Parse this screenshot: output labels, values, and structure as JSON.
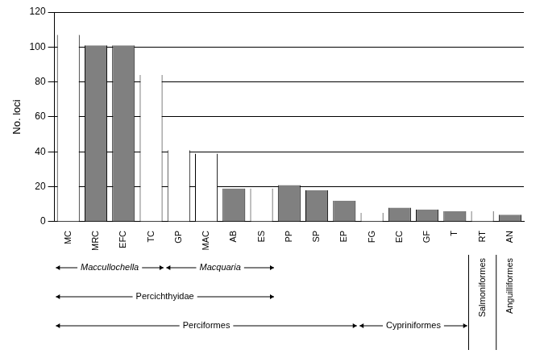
{
  "chart_data": {
    "type": "bar",
    "y_label": "No. loci",
    "categories": [
      "MC",
      "MRC",
      "EFC",
      "TC",
      "GP",
      "MAC",
      "AB",
      "ES",
      "PP",
      "SP",
      "EP",
      "FG",
      "EC",
      "GF",
      "T",
      "RT",
      "AN"
    ],
    "values": [
      107,
      101,
      101,
      84,
      41,
      39,
      19,
      19,
      21,
      18,
      12,
      5,
      8,
      7,
      6,
      6,
      4
    ],
    "colors": [
      "#ffffff",
      "#808080",
      "#808080",
      "#ffffff",
      "#ffffff",
      "#ffffff",
      "#808080",
      "#ffffff",
      "#808080",
      "#808080",
      "#808080",
      "#ffffff",
      "#808080",
      "#808080",
      "#808080",
      "#ffffff",
      "#808080"
    ],
    "ylim": [
      0,
      120
    ],
    "yticks": [
      0,
      20,
      40,
      60,
      80,
      100,
      120
    ],
    "grid": true,
    "groups": [
      [
        {
          "label": "Maccullochella",
          "from": "MC",
          "to": "TC"
        },
        {
          "label": "Macquaria",
          "from": "GP",
          "to": "ES"
        }
      ],
      [
        {
          "label": "Percichthyidae",
          "from": "MC",
          "to": "ES"
        }
      ],
      [
        {
          "label": "Perciformes",
          "from": "MC",
          "to": "EP"
        },
        {
          "label": "Cypriniformes",
          "from": "FG",
          "to": "T"
        },
        {
          "label": "Salmoniformes",
          "from": "RT",
          "to": "RT"
        },
        {
          "label": "Anguilliformes",
          "from": "AN",
          "to": "AN"
        }
      ]
    ]
  }
}
